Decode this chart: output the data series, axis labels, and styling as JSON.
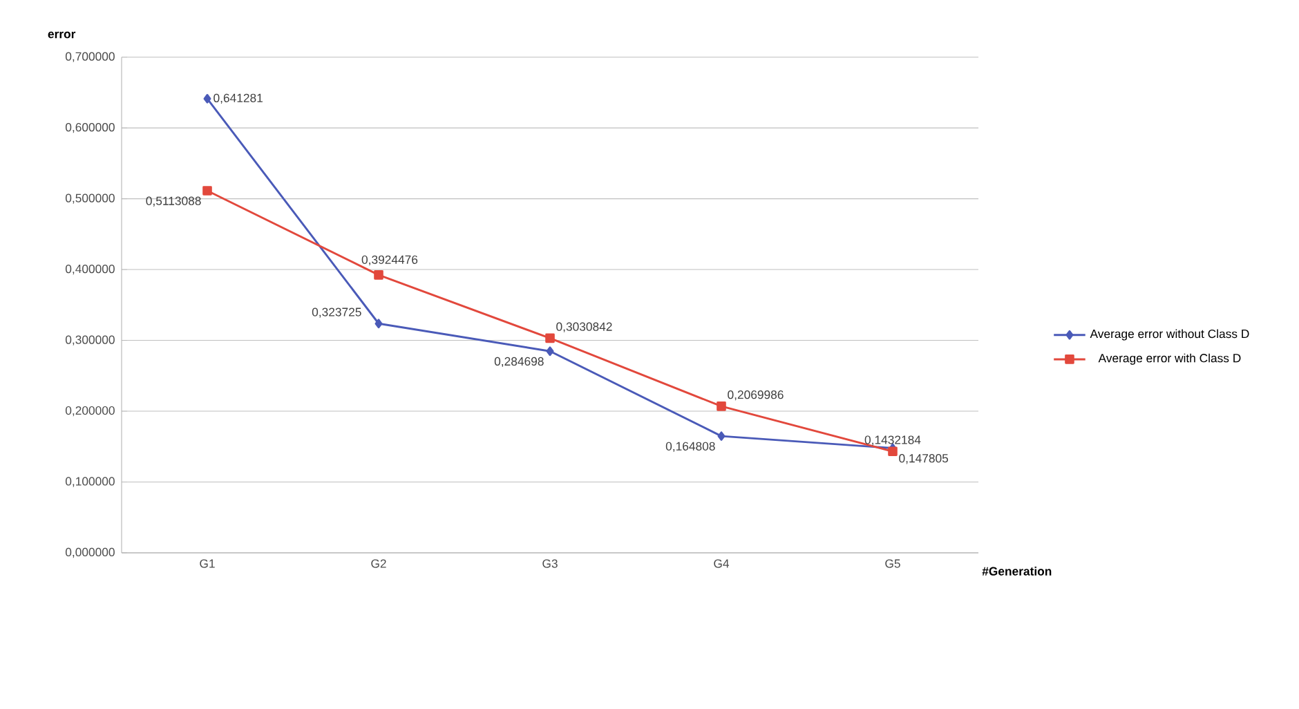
{
  "chart_data": {
    "type": "line",
    "ylabel": "error",
    "xlabel": "#Generation",
    "categories": [
      "G1",
      "G2",
      "G3",
      "G4",
      "G5"
    ],
    "series": [
      {
        "name": "Average error without Class D",
        "color": "#4a5ab8",
        "marker": "diamond",
        "values": [
          0.641281,
          0.323725,
          0.284698,
          0.164808,
          0.147805
        ],
        "value_labels": [
          "0,641281",
          "0,323725",
          "0,284698",
          "0,164808",
          "0,147805"
        ]
      },
      {
        "name": "Average error with Class D",
        "color": "#e2483c",
        "marker": "square",
        "values": [
          0.5113088,
          0.3924476,
          0.3030842,
          0.2069986,
          0.1432184
        ],
        "value_labels": [
          "0,5113088",
          "0,3924476",
          "0,3030842",
          "0,2069986",
          "0,1432184"
        ]
      }
    ],
    "ylim": [
      0,
      0.7
    ],
    "yticks": [
      {
        "value": 0,
        "label": "0,000000"
      },
      {
        "value": 0.1,
        "label": "0,100000"
      },
      {
        "value": 0.2,
        "label": "0,200000"
      },
      {
        "value": 0.3,
        "label": "0,300000"
      },
      {
        "value": 0.4,
        "label": "0,400000"
      },
      {
        "value": 0.5,
        "label": "0,500000"
      },
      {
        "value": 0.6,
        "label": "0,600000"
      },
      {
        "value": 0.7,
        "label": "0,700000"
      }
    ],
    "grid": "y",
    "legend": "right",
    "line_style": "solid"
  }
}
